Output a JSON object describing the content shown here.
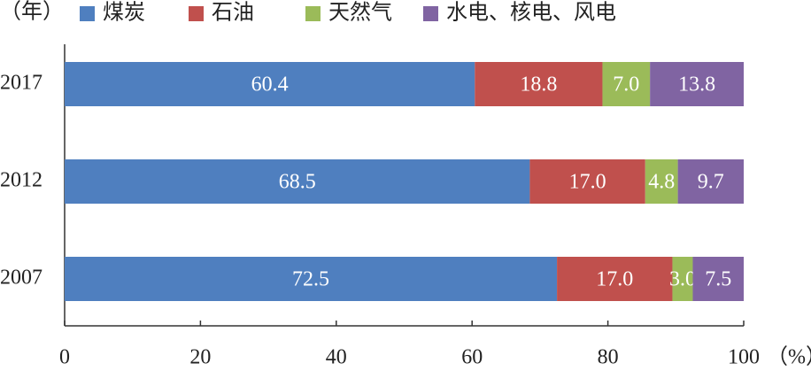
{
  "chart_data": {
    "type": "stacked-bar-horizontal",
    "y_label": "（年）",
    "x_label": "（%）",
    "categories": [
      "2017",
      "2012",
      "2007"
    ],
    "series": [
      {
        "name": "煤炭",
        "color": "#4f7fbf",
        "values": [
          60.4,
          68.5,
          72.5
        ],
        "value_labels": [
          "60.4",
          "68.5",
          "72.5"
        ]
      },
      {
        "name": "石油",
        "color": "#c0504d",
        "values": [
          18.8,
          17,
          17
        ],
        "value_labels": [
          "18.8",
          "17.0",
          "17.0"
        ]
      },
      {
        "name": "天然气",
        "color": "#9bbb59",
        "values": [
          7,
          4.8,
          3
        ],
        "value_labels": [
          "7.0",
          "4.8",
          "3.0"
        ]
      },
      {
        "name": "水电、核电、风电",
        "color": "#8064a2",
        "values": [
          13.8,
          9.7,
          7.5
        ],
        "value_labels": [
          "13.8",
          "9.7",
          "7.5"
        ]
      }
    ],
    "xlim": [
      0,
      100
    ],
    "xticks": [
      0,
      20,
      40,
      60,
      80,
      100
    ]
  }
}
